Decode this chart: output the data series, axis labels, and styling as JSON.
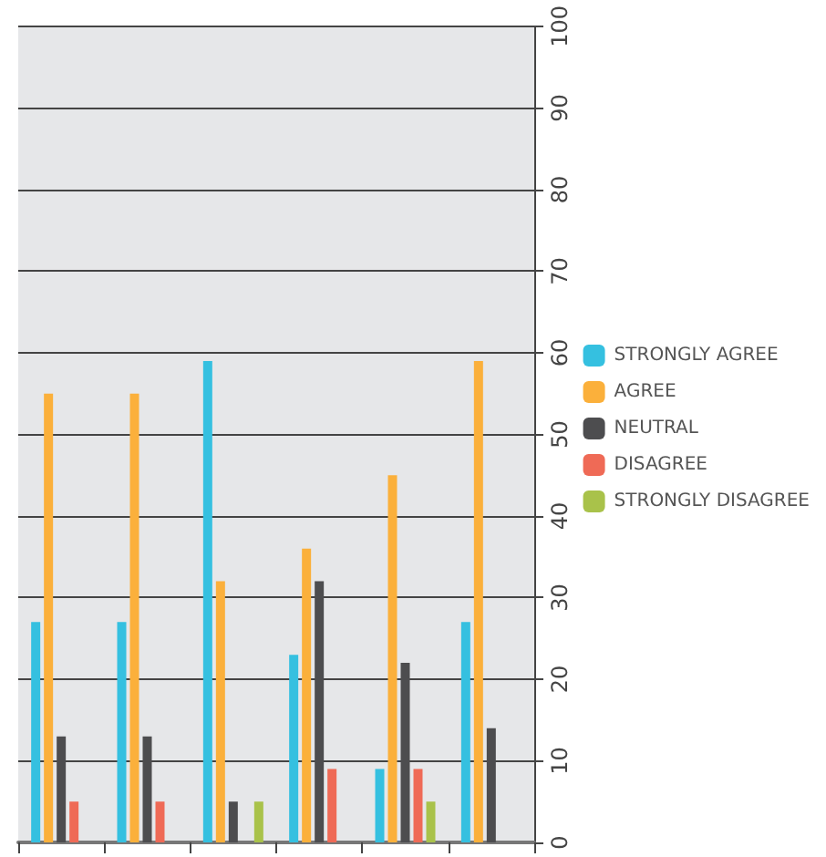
{
  "chart_data": {
    "type": "bar",
    "categories": [
      null,
      null,
      null,
      null,
      null,
      null
    ],
    "series": [
      {
        "name": "STRONGLY AGREE",
        "color": "#35c0e0",
        "values": [
          27,
          27,
          59,
          23,
          9,
          27
        ]
      },
      {
        "name": "AGREE",
        "color": "#fbb03b",
        "values": [
          55,
          55,
          32,
          36,
          45,
          59
        ]
      },
      {
        "name": "NEUTRAL",
        "color": "#4d4d4f",
        "values": [
          13,
          13,
          5,
          32,
          22,
          14
        ]
      },
      {
        "name": "DISAGREE",
        "color": "#ef6a56",
        "values": [
          5,
          5,
          null,
          9,
          9,
          null
        ]
      },
      {
        "name": "STRONGLY DISAGREE",
        "color": "#a9c24a",
        "values": [
          null,
          null,
          5,
          null,
          5,
          null
        ]
      }
    ],
    "ylim": [
      0,
      100
    ],
    "yticks": [
      0,
      10,
      20,
      30,
      40,
      50,
      60,
      70,
      80,
      90,
      100
    ],
    "grid": "y",
    "legend": "right",
    "tick_labels": "y"
  }
}
